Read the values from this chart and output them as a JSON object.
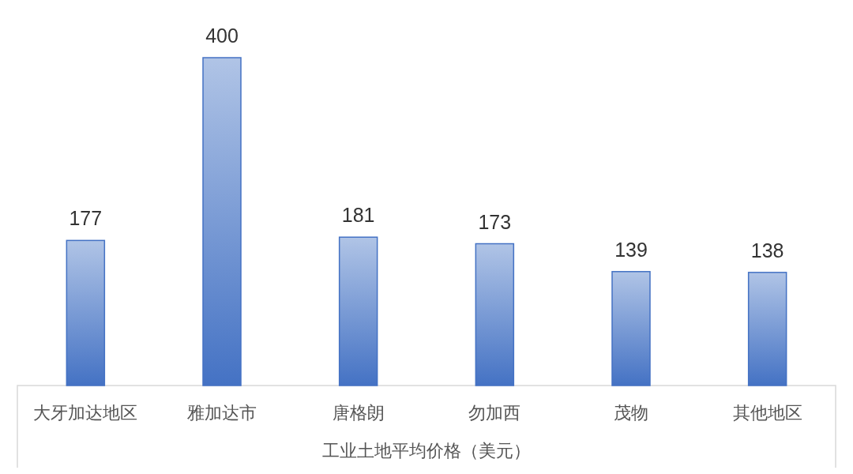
{
  "chart_data": {
    "type": "bar",
    "categories": [
      "大牙加达地区",
      "雅加达市",
      "唐格朗",
      "勿加西",
      "茂物",
      "其他地区"
    ],
    "values": [
      177,
      400,
      181,
      173,
      139,
      138
    ],
    "color": "#4472c4",
    "data_labels": true,
    "xlabel": "工业土地平均价格（美元）"
  }
}
